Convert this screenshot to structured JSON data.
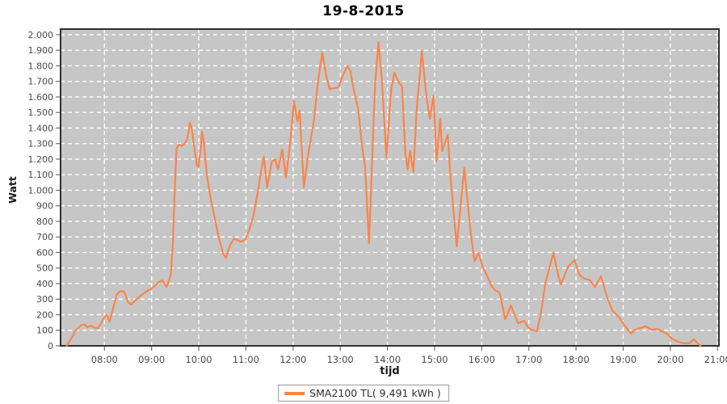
{
  "title": "19-8-2015",
  "colors": {
    "page_background": "#ffffff",
    "plot_background": "#c6c6c6",
    "gridline": "#ffffff",
    "series_line": "#f8854c",
    "plot_border": "#2f2f2f",
    "tick_label": "#4a4a4a",
    "tick_mark": "#707070",
    "title": "#000000",
    "axis_label": "#1a1a1a",
    "legend_border": "#999999",
    "legend_background": "#ffffff"
  },
  "legend": {
    "label": "SMA2100 TL( 9,491 kWh )"
  },
  "chart_data": {
    "type": "line",
    "title": "19-8-2015",
    "xlabel": "tijd",
    "ylabel": "Watt",
    "x_domain": [
      7.07,
      21.03
    ],
    "y_domain": [
      0,
      2036
    ],
    "grid": "white dashed, hourly vertical and every 100 W horizontal",
    "legend_position": "bottom-center",
    "x_ticks": [
      {
        "value": 8,
        "label": "08:00"
      },
      {
        "value": 9,
        "label": "09:00"
      },
      {
        "value": 10,
        "label": "10:00"
      },
      {
        "value": 11,
        "label": "11:00"
      },
      {
        "value": 12,
        "label": "12:00"
      },
      {
        "value": 13,
        "label": "13:00"
      },
      {
        "value": 14,
        "label": "14:00"
      },
      {
        "value": 15,
        "label": "15:00"
      },
      {
        "value": 16,
        "label": "16:00"
      },
      {
        "value": 17,
        "label": "17:00"
      },
      {
        "value": 18,
        "label": "18:00"
      },
      {
        "value": 19,
        "label": "19:00"
      },
      {
        "value": 20,
        "label": "20:00"
      },
      {
        "value": 21,
        "label": "21:00"
      }
    ],
    "y_ticks": [
      {
        "value": 0,
        "label": "0"
      },
      {
        "value": 100,
        "label": "100"
      },
      {
        "value": 200,
        "label": "200"
      },
      {
        "value": 300,
        "label": "300"
      },
      {
        "value": 400,
        "label": "400"
      },
      {
        "value": 500,
        "label": "500"
      },
      {
        "value": 600,
        "label": "600"
      },
      {
        "value": 700,
        "label": "700"
      },
      {
        "value": 800,
        "label": "800"
      },
      {
        "value": 900,
        "label": "900"
      },
      {
        "value": 1000,
        "label": "1.000"
      },
      {
        "value": 1100,
        "label": "1.100"
      },
      {
        "value": 1200,
        "label": "1.200"
      },
      {
        "value": 1300,
        "label": "1.300"
      },
      {
        "value": 1400,
        "label": "1.400"
      },
      {
        "value": 1500,
        "label": "1.500"
      },
      {
        "value": 1600,
        "label": "1.600"
      },
      {
        "value": 1700,
        "label": "1.700"
      },
      {
        "value": 1800,
        "label": "1.800"
      },
      {
        "value": 1900,
        "label": "1.900"
      },
      {
        "value": 2000,
        "label": "2.000"
      }
    ],
    "series": [
      {
        "name": "SMA2100 TL( 9,491 kWh )",
        "color": "#f8854c",
        "points": [
          [
            7.2,
            0
          ],
          [
            7.28,
            40
          ],
          [
            7.38,
            95
          ],
          [
            7.5,
            132
          ],
          [
            7.58,
            138
          ],
          [
            7.64,
            118
          ],
          [
            7.71,
            130
          ],
          [
            7.78,
            118
          ],
          [
            7.85,
            112
          ],
          [
            7.92,
            140
          ],
          [
            8.0,
            185
          ],
          [
            8.05,
            200
          ],
          [
            8.11,
            155
          ],
          [
            8.18,
            235
          ],
          [
            8.26,
            330
          ],
          [
            8.34,
            352
          ],
          [
            8.42,
            348
          ],
          [
            8.5,
            280
          ],
          [
            8.57,
            265
          ],
          [
            8.68,
            300
          ],
          [
            8.8,
            330
          ],
          [
            8.92,
            355
          ],
          [
            9.05,
            380
          ],
          [
            9.15,
            410
          ],
          [
            9.23,
            421
          ],
          [
            9.31,
            378
          ],
          [
            9.37,
            420
          ],
          [
            9.41,
            460
          ],
          [
            9.45,
            650
          ],
          [
            9.49,
            1000
          ],
          [
            9.53,
            1270
          ],
          [
            9.58,
            1295
          ],
          [
            9.64,
            1285
          ],
          [
            9.7,
            1300
          ],
          [
            9.76,
            1330
          ],
          [
            9.81,
            1434
          ],
          [
            9.85,
            1400
          ],
          [
            9.9,
            1290
          ],
          [
            9.96,
            1160
          ],
          [
            9.99,
            1148
          ],
          [
            10.04,
            1260
          ],
          [
            10.07,
            1377
          ],
          [
            10.11,
            1300
          ],
          [
            10.17,
            1100
          ],
          [
            10.25,
            951
          ],
          [
            10.33,
            836
          ],
          [
            10.42,
            700
          ],
          [
            10.52,
            590
          ],
          [
            10.58,
            565
          ],
          [
            10.66,
            645
          ],
          [
            10.74,
            686
          ],
          [
            10.81,
            683
          ],
          [
            10.89,
            668
          ],
          [
            10.98,
            681
          ],
          [
            11.07,
            745
          ],
          [
            11.16,
            836
          ],
          [
            11.23,
            951
          ],
          [
            11.31,
            1100
          ],
          [
            11.38,
            1216
          ],
          [
            11.45,
            1018
          ],
          [
            11.55,
            1185
          ],
          [
            11.62,
            1200
          ],
          [
            11.68,
            1133
          ],
          [
            11.77,
            1263
          ],
          [
            11.85,
            1080
          ],
          [
            11.95,
            1340
          ],
          [
            12.02,
            1574
          ],
          [
            12.09,
            1444
          ],
          [
            12.14,
            1512
          ],
          [
            12.23,
            1018
          ],
          [
            12.33,
            1250
          ],
          [
            12.44,
            1444
          ],
          [
            12.53,
            1704
          ],
          [
            12.62,
            1886
          ],
          [
            12.7,
            1740
          ],
          [
            12.77,
            1652
          ],
          [
            12.86,
            1655
          ],
          [
            12.96,
            1662
          ],
          [
            13.06,
            1740
          ],
          [
            13.15,
            1798
          ],
          [
            13.21,
            1771
          ],
          [
            13.29,
            1642
          ],
          [
            13.38,
            1522
          ],
          [
            13.46,
            1288
          ],
          [
            13.53,
            1148
          ],
          [
            13.61,
            660
          ],
          [
            13.69,
            1300
          ],
          [
            13.74,
            1688
          ],
          [
            13.81,
            1953
          ],
          [
            13.88,
            1720
          ],
          [
            13.98,
            1210
          ],
          [
            14.08,
            1652
          ],
          [
            14.15,
            1756
          ],
          [
            14.24,
            1694
          ],
          [
            14.31,
            1668
          ],
          [
            14.38,
            1236
          ],
          [
            14.43,
            1133
          ],
          [
            14.48,
            1252
          ],
          [
            14.55,
            1117
          ],
          [
            14.62,
            1512
          ],
          [
            14.73,
            1896
          ],
          [
            14.83,
            1600
          ],
          [
            14.9,
            1460
          ],
          [
            14.98,
            1610
          ],
          [
            15.04,
            1185
          ],
          [
            15.12,
            1460
          ],
          [
            15.16,
            1252
          ],
          [
            15.28,
            1356
          ],
          [
            15.33,
            1117
          ],
          [
            15.37,
            977
          ],
          [
            15.47,
            639
          ],
          [
            15.63,
            1143
          ],
          [
            15.77,
            717
          ],
          [
            15.85,
            545
          ],
          [
            15.93,
            597
          ],
          [
            16.02,
            509
          ],
          [
            16.13,
            441
          ],
          [
            16.22,
            379
          ],
          [
            16.3,
            353
          ],
          [
            16.38,
            343
          ],
          [
            16.5,
            171
          ],
          [
            16.62,
            260
          ],
          [
            16.77,
            145
          ],
          [
            16.9,
            161
          ],
          [
            16.98,
            119
          ],
          [
            17.05,
            104
          ],
          [
            17.17,
            94
          ],
          [
            17.25,
            197
          ],
          [
            17.35,
            405
          ],
          [
            17.52,
            597
          ],
          [
            17.62,
            457
          ],
          [
            17.68,
            395
          ],
          [
            17.83,
            509
          ],
          [
            17.97,
            551
          ],
          [
            18.07,
            457
          ],
          [
            18.18,
            431
          ],
          [
            18.3,
            421
          ],
          [
            18.4,
            379
          ],
          [
            18.53,
            447
          ],
          [
            18.67,
            301
          ],
          [
            18.78,
            223
          ],
          [
            18.92,
            182
          ],
          [
            19.03,
            130
          ],
          [
            19.17,
            78
          ],
          [
            19.25,
            104
          ],
          [
            19.37,
            114
          ],
          [
            19.47,
            125
          ],
          [
            19.6,
            104
          ],
          [
            19.72,
            109
          ],
          [
            19.82,
            94
          ],
          [
            19.93,
            78
          ],
          [
            20.03,
            47
          ],
          [
            20.17,
            26
          ],
          [
            20.28,
            16
          ],
          [
            20.4,
            16
          ],
          [
            20.5,
            42
          ],
          [
            20.58,
            16
          ],
          [
            20.64,
            0
          ]
        ]
      }
    ]
  }
}
